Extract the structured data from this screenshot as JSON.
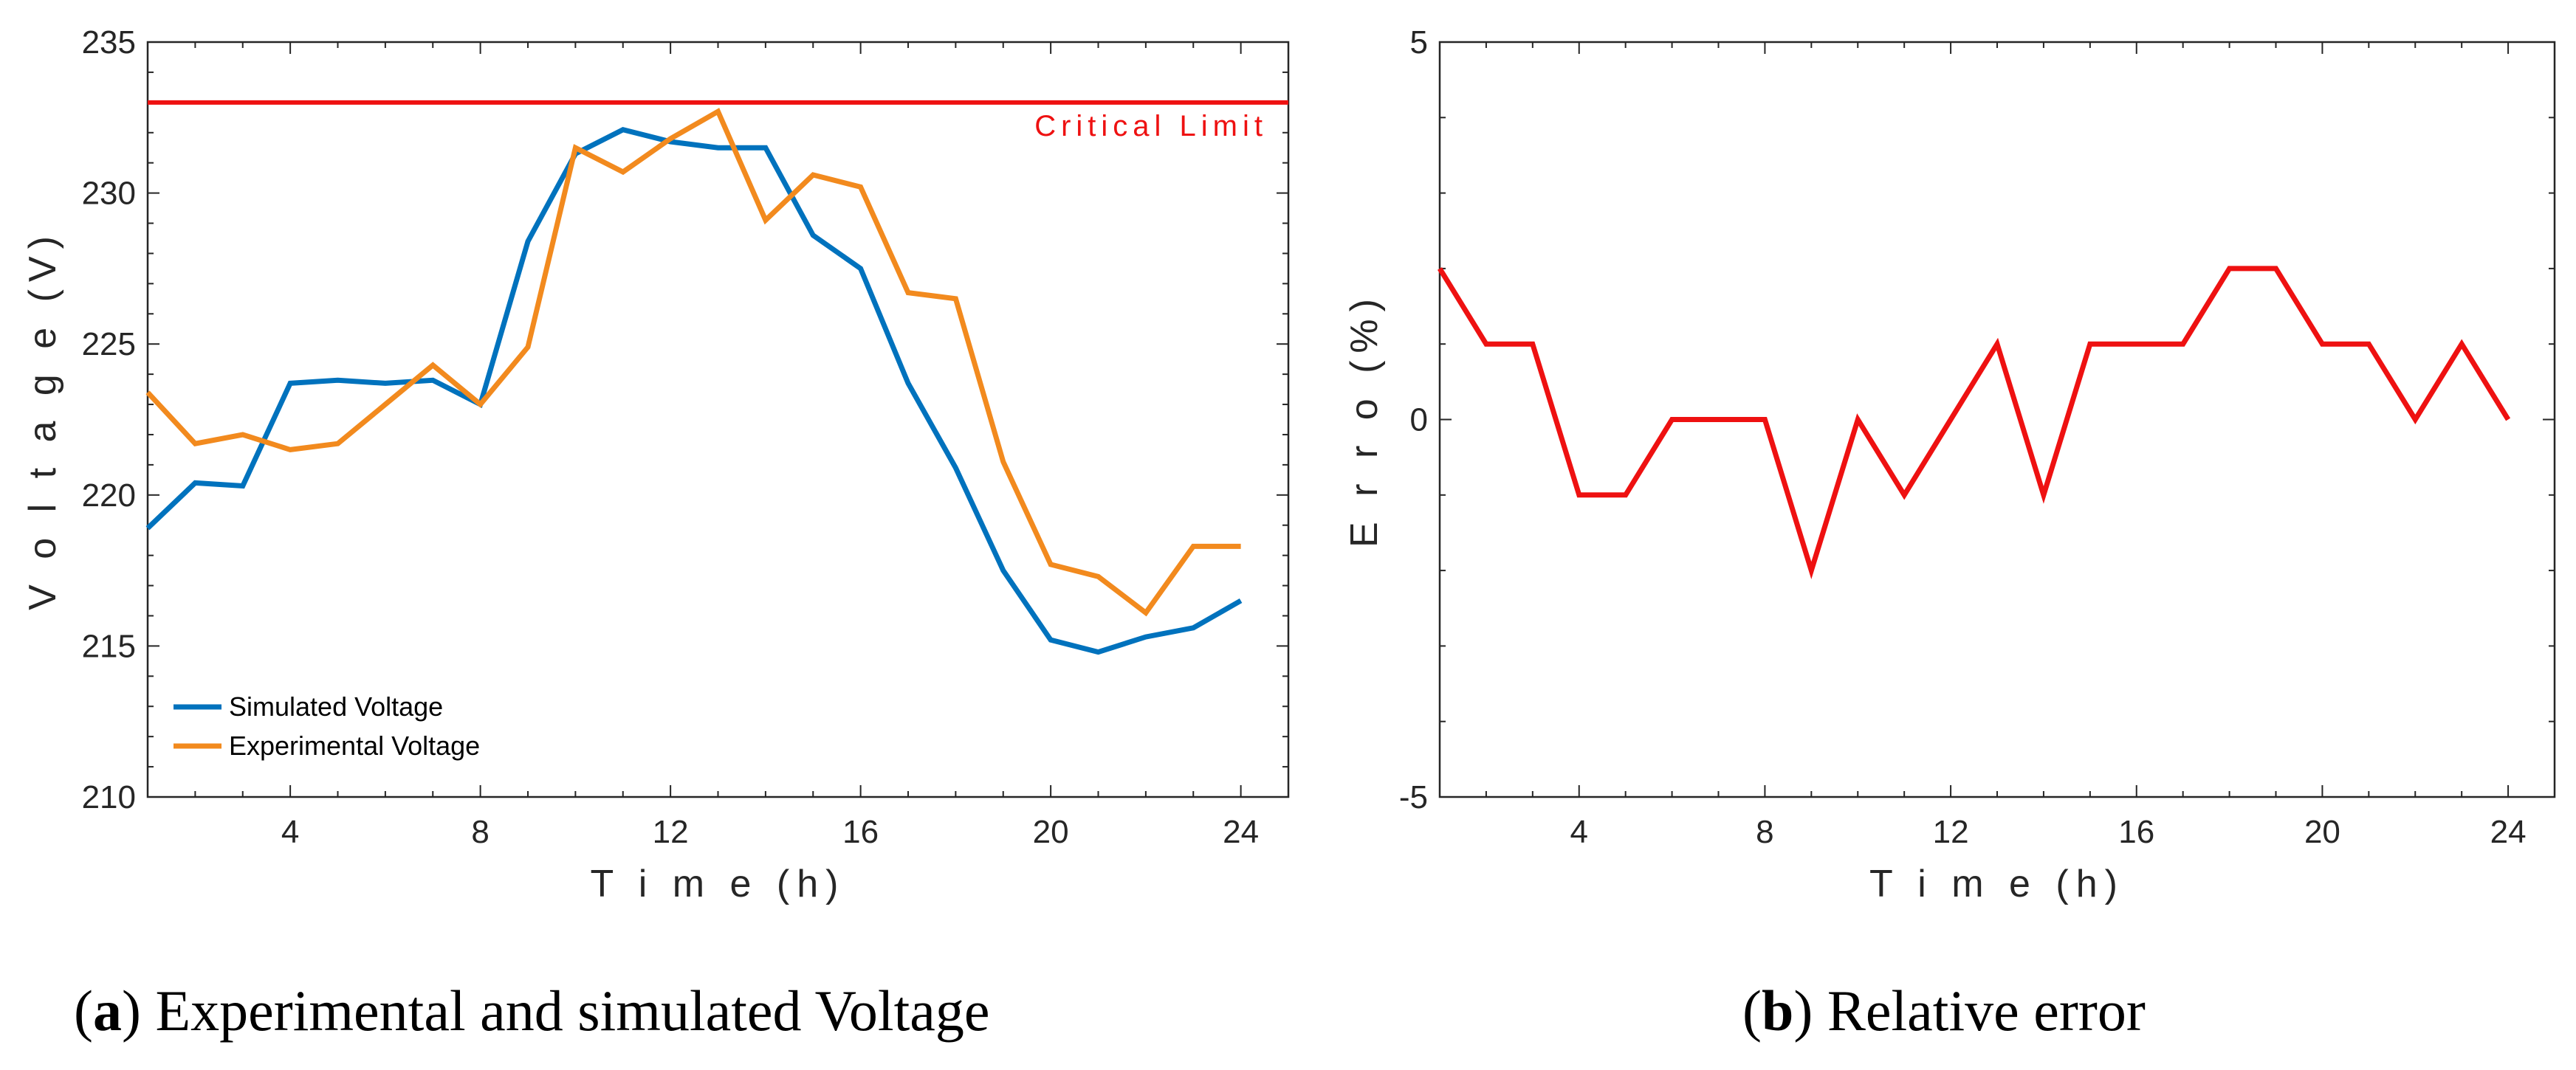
{
  "colors": {
    "simulated": "#0072BD",
    "experimental": "#F28A1E",
    "error": "#EE1111",
    "critical": "#EE1111",
    "axis": "#262626"
  },
  "captions": [
    {
      "letter": "a",
      "text": " Experimental and simulated Voltage"
    },
    {
      "letter": "b",
      "text": " Relative error"
    }
  ],
  "chart_data": [
    {
      "type": "line",
      "title": "",
      "xlabel": "T i m e (h)",
      "ylabel": "V o l t a g e (V)",
      "xlim": [
        1,
        25
      ],
      "ylim": [
        210,
        235
      ],
      "xticks": [
        4,
        8,
        12,
        16,
        20,
        24
      ],
      "yticks": [
        210,
        215,
        220,
        225,
        230,
        235
      ],
      "x": [
        1,
        2,
        3,
        4,
        5,
        6,
        7,
        8,
        9,
        10,
        11,
        12,
        13,
        14,
        15,
        16,
        17,
        18,
        19,
        20,
        21,
        22,
        23,
        24
      ],
      "series": [
        {
          "name": "Simulated Voltage",
          "color": "#0072BD",
          "values": [
            218.9,
            220.4,
            220.3,
            223.7,
            223.8,
            223.7,
            223.8,
            223.0,
            228.4,
            231.3,
            232.1,
            231.7,
            231.5,
            231.5,
            228.6,
            227.5,
            223.7,
            220.9,
            217.5,
            215.2,
            214.8,
            215.3,
            215.6,
            216.5
          ]
        },
        {
          "name": "Experimental Voltage",
          "color": "#F28A1E",
          "values": [
            223.4,
            221.7,
            222.0,
            221.5,
            221.7,
            223.0,
            224.3,
            223.0,
            224.9,
            231.5,
            230.7,
            231.8,
            232.7,
            229.1,
            230.6,
            230.2,
            226.7,
            226.5,
            221.1,
            217.7,
            217.3,
            216.1,
            218.3,
            218.3
          ]
        }
      ],
      "reference_line": {
        "y": 233.0,
        "label": "Critical Limit",
        "color": "#EE1111"
      },
      "legend": {
        "position": "bottom-left",
        "entries": [
          "Simulated Voltage",
          "Experimental Voltage"
        ]
      }
    },
    {
      "type": "line",
      "title": "",
      "xlabel": "T i m e  (h)",
      "ylabel": "E r r o  (%)",
      "xlim": [
        1,
        25
      ],
      "ylim": [
        -5,
        5
      ],
      "xticks": [
        4,
        8,
        12,
        16,
        20,
        24
      ],
      "yticks": [
        -5,
        0,
        5
      ],
      "x": [
        1,
        2,
        3,
        4,
        5,
        6,
        7,
        8,
        9,
        10,
        11,
        12,
        13,
        14,
        15,
        16,
        17,
        18,
        19,
        20,
        21,
        22,
        23,
        24
      ],
      "series": [
        {
          "name": "Relative error",
          "color": "#EE1111",
          "values": [
            2,
            1,
            1,
            -1,
            -1,
            0,
            0,
            0,
            -2,
            0,
            -1,
            0,
            1,
            -1,
            1,
            1,
            1,
            2,
            2,
            1,
            1,
            0,
            1,
            0
          ]
        }
      ]
    }
  ]
}
